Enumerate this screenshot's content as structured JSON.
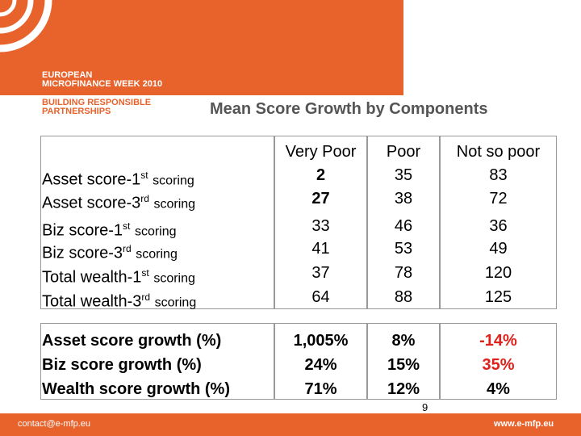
{
  "header": {
    "logo_line1": "EUROPEAN",
    "logo_line2": "MICROFINANCE WEEK 2010",
    "logo_line3": "BUILDING RESPONSIBLE",
    "logo_line4": "PARTNERSHIPS"
  },
  "title": "Mean Score Growth by Components",
  "table": {
    "columns": [
      "Very Poor",
      "Poor",
      "Not so poor"
    ],
    "rows": [
      {
        "label": "Asset score-1",
        "sup": "st",
        "suffix": "scoring",
        "values": [
          2,
          35,
          83
        ]
      },
      {
        "label": "Asset score-3",
        "sup": "rd",
        "suffix": "scoring",
        "values": [
          27,
          38,
          72
        ]
      },
      {
        "label": "Biz score-1",
        "sup": "st",
        "suffix": "scoring",
        "values": [
          33,
          46,
          36
        ]
      },
      {
        "label": "Biz score-3",
        "sup": "rd",
        "suffix": "scoring",
        "values": [
          41,
          53,
          49
        ]
      },
      {
        "label": "Total wealth-1",
        "sup": "st",
        "suffix": "scoring",
        "values": [
          37,
          78,
          120
        ]
      },
      {
        "label": "Total wealth-3",
        "sup": "rd",
        "suffix": "scoring",
        "values": [
          64,
          88,
          125
        ]
      }
    ],
    "growth_rows": [
      {
        "label": "Asset score growth (%)",
        "values": [
          "1,005%",
          "8%",
          "-14%"
        ]
      },
      {
        "label": "Biz score growth (%)",
        "values": [
          "24%",
          "15%",
          "35%"
        ]
      },
      {
        "label": "Wealth score growth (%)",
        "values": [
          "71%",
          "12%",
          "4%"
        ]
      }
    ]
  },
  "page_number": "9",
  "footer": {
    "contact": "contact@e-mfp.eu",
    "website": "www.e-mfp.eu"
  }
}
